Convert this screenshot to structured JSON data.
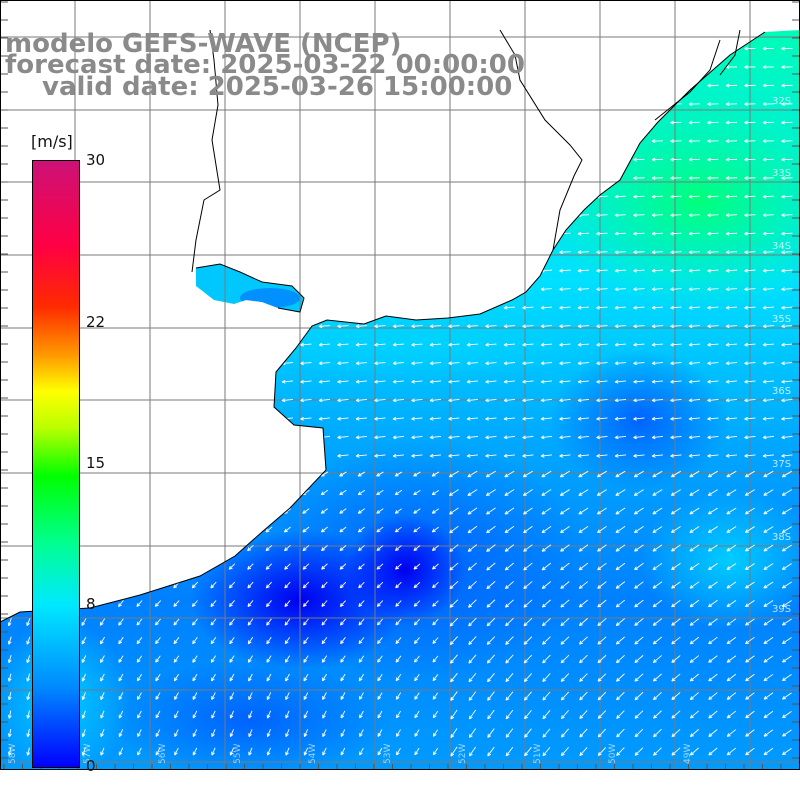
{
  "title": {
    "line1": "modelo GEFS-WAVE (NCEP)",
    "line2": "forecast date: 2025-03-22 00:00:00",
    "line3": "valid date: 2025-03-26 15:00:00"
  },
  "colorbar": {
    "unit": "[m/s]",
    "ticks": [
      "30",
      "22",
      "15",
      "8",
      "0"
    ],
    "tick_values": [
      30,
      22,
      15,
      8,
      0
    ],
    "range": [
      0,
      30
    ],
    "colors": {
      "min": "#0000ff",
      "low": "#00e8ff",
      "mid": "#00ff00",
      "high": "#ffff00",
      "upper": "#ff2a00",
      "max": "#cc1177"
    }
  },
  "latitude_labels": [
    "32S",
    "33S",
    "34S",
    "35S",
    "36S",
    "37S",
    "38S",
    "39S"
  ],
  "longitude_labels": [
    "58W",
    "57W",
    "56W",
    "55W",
    "54W",
    "53W",
    "52W",
    "51W",
    "50W",
    "49W"
  ],
  "arrow_color": "#ffffff",
  "land_color": "#ffffff",
  "grid_color": "#7a7a7a",
  "coast_color": "#000000"
}
